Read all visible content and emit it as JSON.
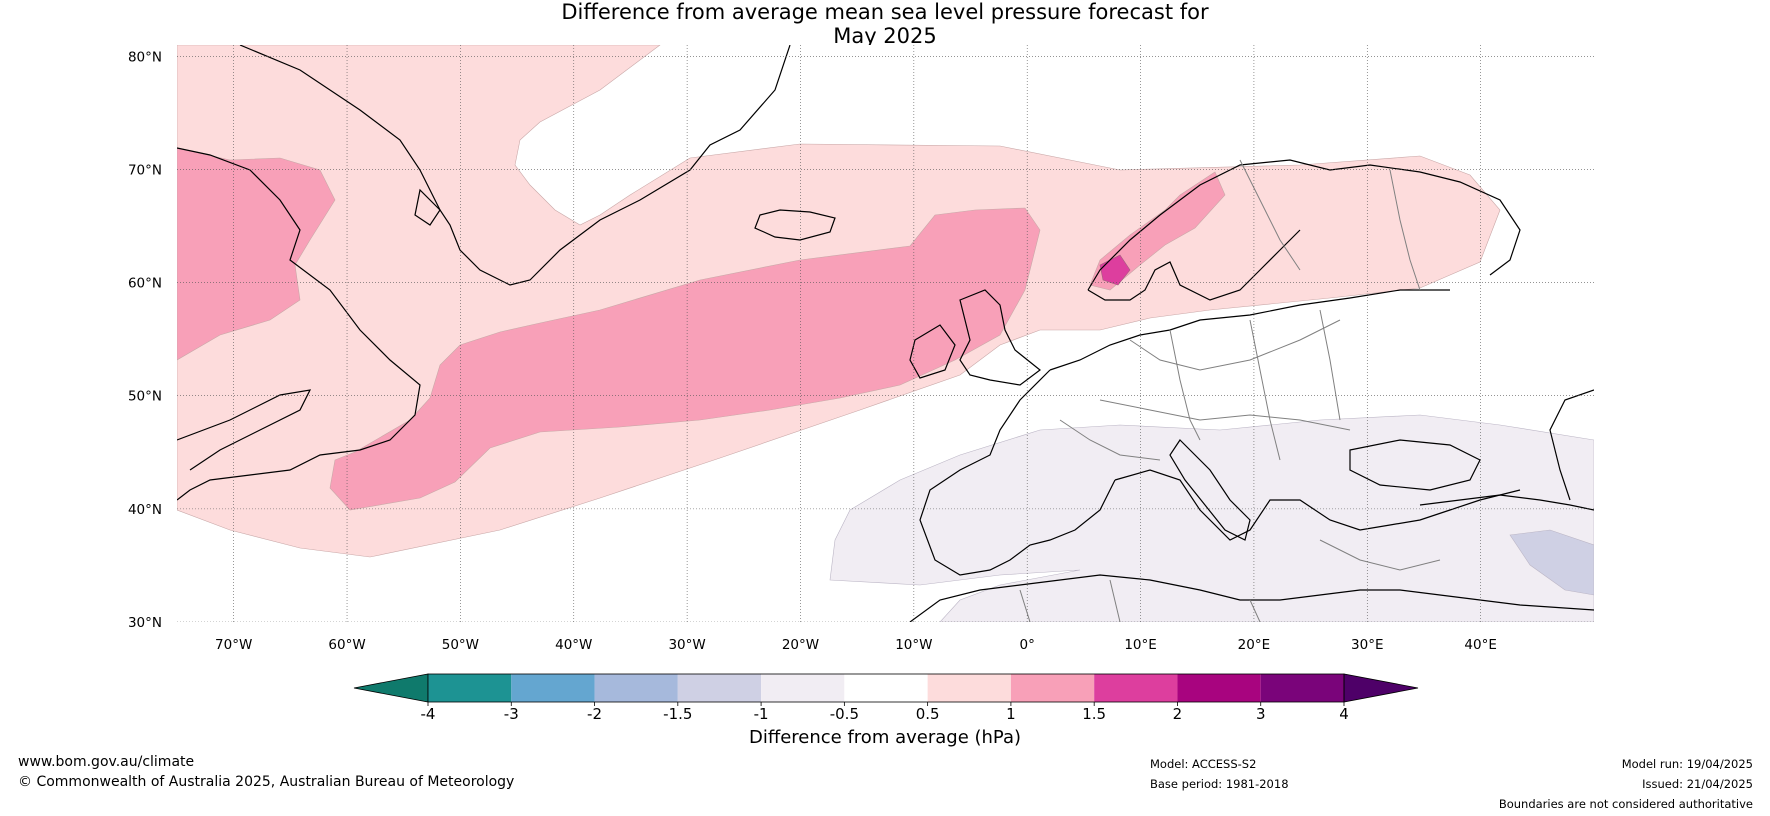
{
  "title": {
    "line1": "Difference from average mean sea level pressure forecast for",
    "line2": "May 2025"
  },
  "map": {
    "lon_range": [
      -75,
      50
    ],
    "lat_range": [
      30,
      81
    ],
    "lat_ticks": [
      {
        "value": 80,
        "label": "80°N"
      },
      {
        "value": 70,
        "label": "70°N"
      },
      {
        "value": 60,
        "label": "60°N"
      },
      {
        "value": 50,
        "label": "50°N"
      },
      {
        "value": 40,
        "label": "40°N"
      },
      {
        "value": 30,
        "label": "30°N"
      }
    ],
    "lon_ticks": [
      {
        "value": -70,
        "label": "70°W"
      },
      {
        "value": -60,
        "label": "60°W"
      },
      {
        "value": -50,
        "label": "50°W"
      },
      {
        "value": -40,
        "label": "40°W"
      },
      {
        "value": -30,
        "label": "30°W"
      },
      {
        "value": -20,
        "label": "20°W"
      },
      {
        "value": -10,
        "label": "10°W"
      },
      {
        "value": 0,
        "label": "0°"
      },
      {
        "value": 10,
        "label": "10°E"
      },
      {
        "value": 20,
        "label": "20°E"
      },
      {
        "value": 30,
        "label": "30°E"
      },
      {
        "value": 40,
        "label": "40°E"
      }
    ],
    "fill_colors": {
      "pos_0_5_1": "#fddcdc",
      "pos_1_1_5": "#f8a0b8",
      "pos_1_5_2": "#dd3e9e",
      "neg_0_5_1": "#f1edf3",
      "neg_1_1_5": "#cfd0e4"
    }
  },
  "colorbar": {
    "tick_labels": [
      "-4",
      "-3",
      "-2",
      "-1.5",
      "-1",
      "-0.5",
      "0.5",
      "1",
      "1.5",
      "2",
      "3",
      "4"
    ],
    "colors": [
      "#0f7a6c",
      "#1d9393",
      "#64a6d0",
      "#a6b9dc",
      "#cfd0e4",
      "#f1edf3",
      "#ffffff",
      "#fddcdc",
      "#f8a0b8",
      "#dd3e9e",
      "#a8047f",
      "#7a047a",
      "#4e0068"
    ],
    "label": "Difference from average (hPa)"
  },
  "footer": {
    "website": "www.bom.gov.au/climate",
    "copyright": "© Commonwealth of Australia 2025, Australian Bureau of Meteorology",
    "model": "Model: ACCESS-S2",
    "base_period": "Base period: 1981-2018",
    "model_run": "Model run: 19/04/2025",
    "issued": "Issued: 21/04/2025",
    "disclaimer": "Boundaries are not considered authoritative"
  }
}
